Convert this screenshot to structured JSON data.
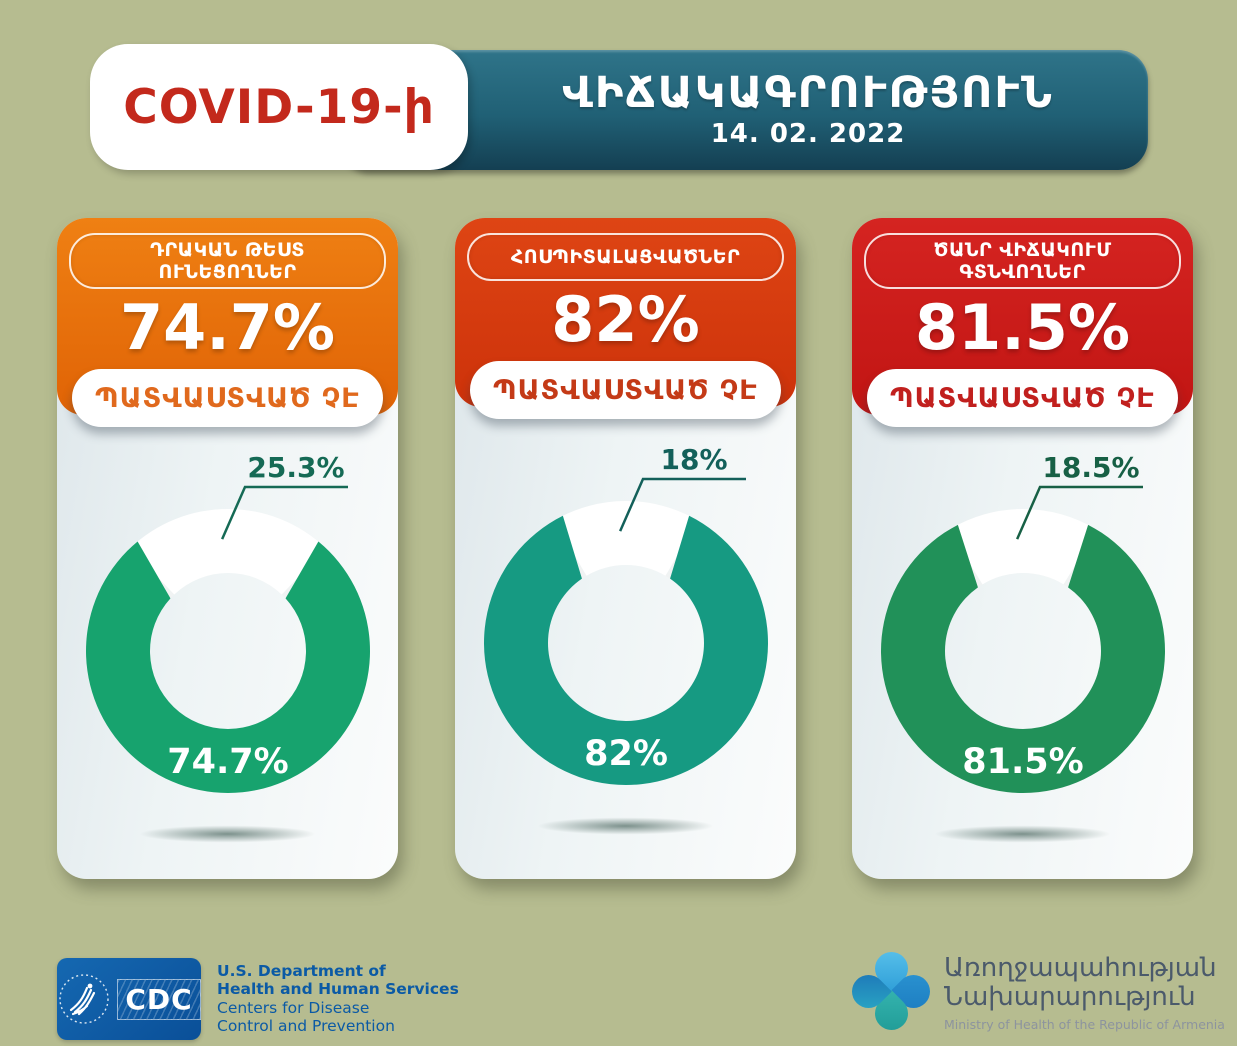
{
  "header": {
    "badge_label": "COVID-19-ի",
    "title": "ՎԻՃԱԿԱԳՐՈՒԹՅՈՒՆ",
    "date": "14. 02. 2022"
  },
  "cards": [
    {
      "category": "ԴՐԱԿԱՆ ԹԵՍՏ ՈՒՆԵՑՈՂՆԵՐ",
      "headline": "74.7%",
      "pill": "ՊԱՏՎԱՍՏՎԱԾ ՉԷ",
      "donut_color": "#17a36e",
      "callout_color": "#156a55",
      "inside_label": "74.7%",
      "callout_label": "25.3%"
    },
    {
      "category": "ՀՈՍՊԻՏԱԼԱՑՎԱԾՆԵՐ",
      "headline": "82%",
      "pill": "ՊԱՏՎԱՍՏՎԱԾ ՉԷ",
      "donut_color": "#169a82",
      "callout_color": "#13605a",
      "inside_label": "82%",
      "callout_label": "18%"
    },
    {
      "category": "ԾԱՆՐ ՎԻՃԱԿՈՒՄ ԳՏՆՎՈՂՆԵՐ",
      "headline": "81.5%",
      "pill": "ՊԱՏՎԱՍՏՎԱԾ ՉԷ",
      "donut_color": "#219159",
      "callout_color": "#176045",
      "inside_label": "81.5%",
      "callout_label": "18.5%"
    }
  ],
  "chart_data": [
    {
      "type": "pie",
      "variant": "donut",
      "title": "ԴՐԱԿԱՆ ԹԵՍՏ ՈՒՆԵՑՈՂՆԵՐ — 74.7% ՊԱՏՎԱՍՏՎԱԾ ՉԷ",
      "slices": [
        {
          "label": "ՊԱՏՎԱՍՏՎԱԾ ՉԷ",
          "value": 74.7,
          "color": "#17a36e",
          "data_label": "74.7%"
        },
        {
          "label": "",
          "value": 25.3,
          "color": "#ffffff",
          "data_label": "25.3%"
        }
      ]
    },
    {
      "type": "pie",
      "variant": "donut",
      "title": "ՀՈՍՊԻՏԱԼԱՑՎԱԾՆԵՐ — 82% ՊԱՏՎԱՍՏՎԱԾ ՉԷ",
      "slices": [
        {
          "label": "ՊԱՏՎԱՍՏՎԱԾ ՉԷ",
          "value": 82,
          "color": "#169a82",
          "data_label": "82%"
        },
        {
          "label": "",
          "value": 18,
          "color": "#ffffff",
          "data_label": "18%"
        }
      ]
    },
    {
      "type": "pie",
      "variant": "donut",
      "title": "ԾԱՆՐ ՎԻՃԱԿՈՒՄ ԳՏՆՎՈՂՆԵՐ — 81.5% ՊԱՏՎԱՍՏՎԱԾ ՉԷ",
      "slices": [
        {
          "label": "ՊԱՏՎԱՍՏՎԱԾ ՉԷ",
          "value": 81.5,
          "color": "#219159",
          "data_label": "81.5%"
        },
        {
          "label": "",
          "value": 18.5,
          "color": "#ffffff",
          "data_label": "18.5%"
        }
      ]
    }
  ],
  "footer": {
    "cdc": {
      "letters": "CDC",
      "dept_bold_1": "U.S. Department of",
      "dept_bold_2": "Health and Human Services",
      "dept_reg_1": "Centers for Disease",
      "dept_reg_2": "Control and Prevention"
    },
    "moh": {
      "line1_am": "Առողջապահության",
      "line2_am": "Նախարարություն",
      "line_en": "Ministry of Health of the Republic of Armenia"
    }
  }
}
